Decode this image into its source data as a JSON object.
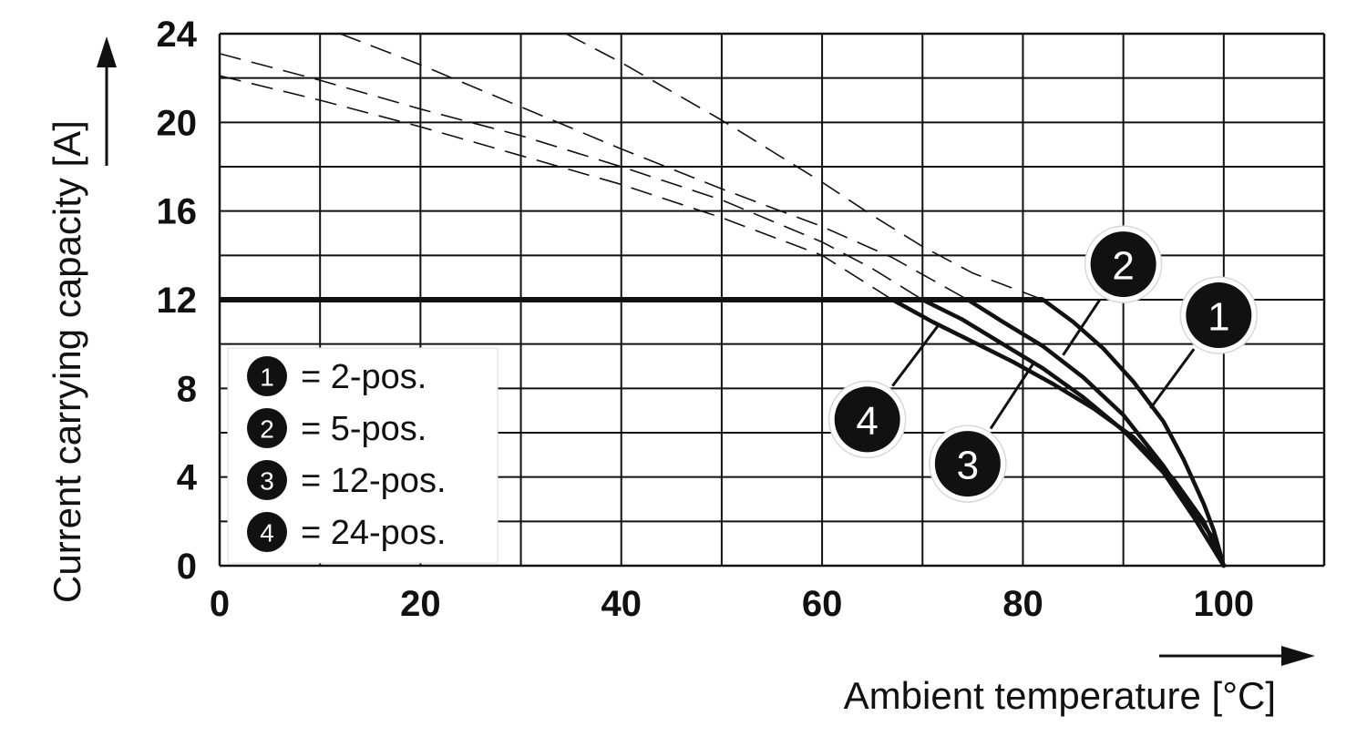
{
  "chart_data": {
    "type": "line",
    "xlabel": "Ambient temperature [°C]",
    "ylabel": "Current carrying capacity [A]",
    "xlim": [
      0,
      110
    ],
    "ylim": [
      0,
      24
    ],
    "x_ticks": [
      "0",
      "20",
      "40",
      "60",
      "80",
      "100"
    ],
    "y_ticks": [
      "0",
      "4",
      "8",
      "12",
      "16",
      "20",
      "24"
    ],
    "grid": true,
    "legend_position": "bottom-left",
    "legend": [
      {
        "marker": "1",
        "text": "= 2-pos."
      },
      {
        "marker": "2",
        "text": "= 5-pos."
      },
      {
        "marker": "3",
        "text": "= 12-pos."
      },
      {
        "marker": "4",
        "text": "= 24-pos."
      }
    ],
    "limit_line": {
      "y": 12
    },
    "series": [
      {
        "marker": "1",
        "style": "solid",
        "x": [
          82,
          85,
          88,
          91,
          94,
          96,
          98,
          99,
          100
        ],
        "y": [
          12,
          11,
          9.8,
          8.3,
          6.5,
          4.8,
          2.8,
          1.6,
          0
        ]
      },
      {
        "marker": "2",
        "style": "solid",
        "x": [
          74.5,
          78,
          82,
          86,
          90,
          94,
          97,
          99,
          100
        ],
        "y": [
          12,
          11,
          9.9,
          8.5,
          6.8,
          4.5,
          2.5,
          1.2,
          0
        ]
      },
      {
        "marker": "3",
        "style": "solid",
        "x": [
          70,
          74,
          78,
          82,
          86,
          90,
          94,
          97,
          100
        ],
        "y": [
          12,
          11.1,
          10,
          8.9,
          7.6,
          6.1,
          4.2,
          2.2,
          0
        ]
      },
      {
        "marker": "4",
        "style": "solid",
        "x": [
          67,
          71,
          75,
          79,
          83,
          87,
          91,
          95,
          98,
          100
        ],
        "y": [
          12,
          11,
          10.1,
          9.2,
          8.2,
          7.1,
          5.8,
          3.9,
          2,
          0
        ]
      },
      {
        "marker": "1",
        "style": "dashed",
        "x": [
          34.5,
          40,
          45,
          50,
          55,
          60,
          65,
          70,
          75,
          82
        ],
        "y": [
          24,
          22.7,
          21.4,
          20.1,
          18.7,
          17.3,
          15.8,
          14.4,
          13.2,
          12
        ]
      },
      {
        "marker": "2",
        "style": "dashed",
        "x": [
          12,
          20,
          30,
          40,
          50,
          60,
          67,
          74.5
        ],
        "y": [
          24,
          22.6,
          20.7,
          18.8,
          17,
          15.3,
          13.9,
          12
        ]
      },
      {
        "marker": "3",
        "style": "dashed",
        "x": [
          0,
          10,
          20,
          30,
          40,
          50,
          60,
          65,
          70
        ],
        "y": [
          23.1,
          21.9,
          20.6,
          19.4,
          18,
          16.5,
          14.6,
          13.4,
          12
        ]
      },
      {
        "marker": "4",
        "style": "dashed",
        "x": [
          0,
          10,
          20,
          30,
          40,
          50,
          60,
          67
        ],
        "y": [
          22.1,
          21,
          19.8,
          18.5,
          17.2,
          15.7,
          14,
          12
        ]
      }
    ],
    "callouts": [
      {
        "marker": "1",
        "x": 99.5,
        "y": 11.3
      },
      {
        "marker": "2",
        "x": 90,
        "y": 13.6
      },
      {
        "marker": "3",
        "x": 74.5,
        "y": 4.6
      },
      {
        "marker": "4",
        "x": 64.5,
        "y": 6.6
      }
    ]
  }
}
